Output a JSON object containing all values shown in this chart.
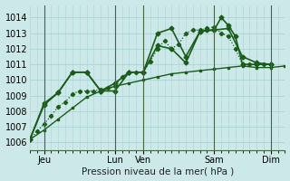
{
  "xlabel": "Pression niveau de la mer( hPa )",
  "bg_color": "#cce8e8",
  "grid_color": "#aad4d4",
  "line_color": "#1a5c1a",
  "ylim": [
    1005.5,
    1014.8
  ],
  "yticks": [
    1006,
    1007,
    1008,
    1009,
    1010,
    1011,
    1012,
    1013,
    1014
  ],
  "xlim": [
    0,
    216
  ],
  "xtick_positions": [
    12,
    72,
    96,
    156,
    204
  ],
  "xtick_labels": [
    "Jeu",
    "Lun",
    "Ven",
    "Sam",
    "Dim"
  ],
  "vlines": [
    12,
    72,
    96,
    156,
    204
  ],
  "series_flat": {
    "x": [
      0,
      12,
      24,
      36,
      48,
      60,
      72,
      84,
      96,
      108,
      120,
      132,
      144,
      156,
      168,
      180,
      192,
      204,
      216
    ],
    "y": [
      1006.2,
      1006.8,
      1007.5,
      1008.2,
      1008.9,
      1009.3,
      1009.6,
      1009.8,
      1010.0,
      1010.2,
      1010.4,
      1010.5,
      1010.6,
      1010.7,
      1010.8,
      1010.9,
      1010.8,
      1010.8,
      1010.9
    ],
    "marker": "s",
    "markersize": 2.0,
    "linewidth": 1.0,
    "linestyle": "-"
  },
  "series_dotted": {
    "x": [
      0,
      6,
      12,
      18,
      24,
      30,
      36,
      42,
      48,
      54,
      60,
      66,
      72,
      78,
      84,
      90,
      96,
      102,
      108,
      114,
      120,
      126,
      132,
      138,
      144,
      150,
      156,
      162,
      168,
      174,
      180,
      186,
      192,
      198,
      204
    ],
    "y": [
      1006.2,
      1006.7,
      1007.2,
      1007.7,
      1008.3,
      1008.6,
      1009.1,
      1009.3,
      1009.3,
      1009.3,
      1009.4,
      1009.5,
      1009.6,
      1010.2,
      1010.5,
      1010.5,
      1010.5,
      1011.2,
      1012.0,
      1012.5,
      1012.0,
      1012.3,
      1013.0,
      1013.2,
      1013.2,
      1013.3,
      1013.4,
      1013.0,
      1012.8,
      1012.0,
      1011.0,
      1011.0,
      1011.0,
      1011.0,
      1011.0
    ],
    "marker": "D",
    "markersize": 2.2,
    "linewidth": 0.9,
    "linestyle": ":"
  },
  "series_solid1": {
    "x": [
      0,
      12,
      24,
      36,
      48,
      60,
      72,
      84,
      96,
      108,
      120,
      132,
      144,
      150,
      156,
      162,
      168,
      174,
      180,
      192,
      204
    ],
    "y": [
      1006.2,
      1008.4,
      1009.2,
      1010.5,
      1010.5,
      1009.3,
      1009.3,
      1010.5,
      1010.5,
      1013.0,
      1013.3,
      1011.5,
      1013.1,
      1013.2,
      1013.2,
      1014.0,
      1013.5,
      1012.8,
      1011.0,
      1011.0,
      1011.0
    ],
    "marker": "D",
    "markersize": 2.5,
    "linewidth": 1.2,
    "linestyle": "-"
  },
  "series_solid2": {
    "x": [
      0,
      12,
      24,
      36,
      48,
      60,
      72,
      84,
      96,
      108,
      120,
      132,
      144,
      156,
      168,
      180,
      192,
      204
    ],
    "y": [
      1006.2,
      1008.5,
      1009.2,
      1010.5,
      1010.5,
      1009.3,
      1009.8,
      1010.5,
      1010.5,
      1012.2,
      1012.0,
      1011.1,
      1013.1,
      1013.2,
      1013.3,
      1011.5,
      1011.1,
      1011.0
    ],
    "marker": "D",
    "markersize": 2.5,
    "linewidth": 1.2,
    "linestyle": "-"
  }
}
